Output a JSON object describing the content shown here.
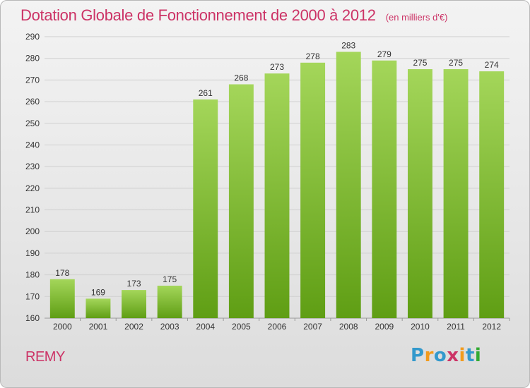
{
  "title": "Dotation Globale de Fonctionnement de 2000 à 2012",
  "unit_note": "(en milliers d'€)",
  "entity": "REMY",
  "logo": {
    "letters": [
      "P",
      "r",
      "o",
      "x",
      "i",
      "t",
      "i"
    ],
    "colors": [
      "#3399cc",
      "#f29b1d",
      "#3399cc",
      "#cc3366",
      "#f29b1d",
      "#3399cc",
      "#33aa33"
    ]
  },
  "colors": {
    "title": "#cc3366",
    "bar_light": "#a4d65a",
    "bar_dark": "#5f9e14",
    "grid": "#cfcfcf",
    "axis_text": "#333333"
  },
  "chart_data": {
    "type": "bar",
    "title": "Dotation Globale de Fonctionnement de 2000 à 2012",
    "subtitle": "(en milliers d'€)",
    "categories": [
      "2000",
      "2001",
      "2002",
      "2003",
      "2004",
      "2005",
      "2006",
      "2007",
      "2008",
      "2009",
      "2010",
      "2011",
      "2012"
    ],
    "values": [
      178,
      169,
      173,
      175,
      261,
      268,
      273,
      278,
      283,
      279,
      275,
      275,
      274
    ],
    "ylim": [
      160,
      290
    ],
    "yticks": [
      160,
      170,
      180,
      190,
      200,
      210,
      220,
      230,
      240,
      250,
      260,
      270,
      280,
      290
    ],
    "grid": true,
    "data_labels": true
  }
}
